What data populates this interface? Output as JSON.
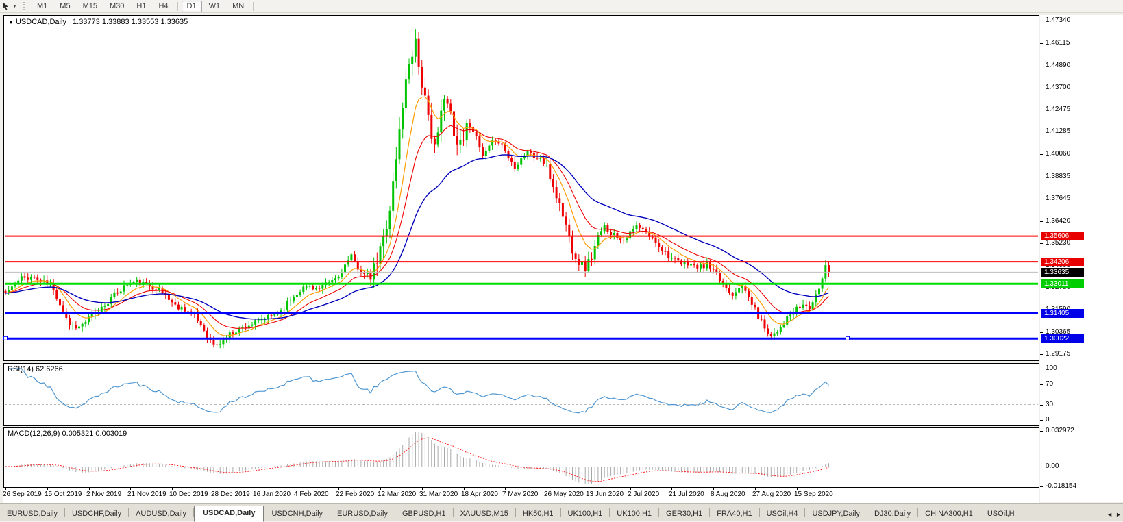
{
  "toolbar": {
    "tool_icon": "cursor-tool-icon",
    "dropdown_caret": "▼",
    "timeframes": [
      "M1",
      "M5",
      "M15",
      "M30",
      "H1",
      "H4",
      "D1",
      "W1",
      "MN"
    ],
    "active_timeframe": "D1"
  },
  "main_chart": {
    "collapse_caret": "▼",
    "title": "USDCAD,Daily",
    "ohlc": "1.33773 1.33883 1.33553 1.33635"
  },
  "rsi_panel": {
    "label": "RSI(14) 62.6266",
    "axis": [
      {
        "text": "100",
        "value": 100
      },
      {
        "text": "70",
        "value": 70
      },
      {
        "text": "30",
        "value": 30
      },
      {
        "text": "0",
        "value": 0
      }
    ]
  },
  "macd_panel": {
    "label": "MACD(12,26,9) 0.005321 0.003019",
    "axis": [
      {
        "text": "0.032972",
        "value": 0.032972
      },
      {
        "text": "0.00",
        "value": 0.0
      },
      {
        "text": "-0.018154",
        "value": -0.018154
      }
    ]
  },
  "price_axis": {
    "badges": [
      {
        "text": "1.35606",
        "price": 1.35606,
        "bg": "#e80000",
        "fg": "#ffffff"
      },
      {
        "text": "1.34206",
        "price": 1.34206,
        "bg": "#e80000",
        "fg": "#ffffff"
      },
      {
        "text": "1.33635",
        "price": 1.33635,
        "bg": "#000000",
        "fg": "#ffffff"
      },
      {
        "text": "1.33011",
        "price": 1.33011,
        "bg": "#00ce00",
        "fg": "#ffffff"
      },
      {
        "text": "1.31405",
        "price": 1.31405,
        "bg": "#0000e8",
        "fg": "#ffffff"
      },
      {
        "text": "1.30022",
        "price": 1.30022,
        "bg": "#0000e8",
        "fg": "#ffffff"
      }
    ]
  },
  "date_axis": {
    "labels": [
      "26 Sep 2019",
      "15 Oct 2019",
      "2 Nov 2019",
      "21 Nov 2019",
      "10 Dec 2019",
      "28 Dec 2019",
      "16 Jan 2020",
      "4 Feb 2020",
      "22 Feb 2020",
      "12 Mar 2020",
      "31 Mar 2020",
      "18 Apr 2020",
      "7 May 2020",
      "26 May 2020",
      "13 Jun 2020",
      "2 Jul 2020",
      "21 Jul 2020",
      "8 Aug 2020",
      "27 Aug 2020",
      "15 Sep 2020"
    ]
  },
  "tab_bar": {
    "tabs": [
      "EURUSD,Daily",
      "USDCHF,Daily",
      "AUDUSD,Daily",
      "USDCAD,Daily",
      "USDCNH,Daily",
      "EURUSD,Daily",
      "GBPUSD,H1",
      "XAUUSD,M15",
      "HK50,H1",
      "UK100,H1",
      "UK100,H1",
      "GER30,H1",
      "FRA40,H1",
      "USOil,H4",
      "USDJPY,Daily",
      "DJ30,Daily",
      "CHINA300,H1",
      "USOil,H"
    ],
    "active_index": 3,
    "scroll_left": "◄",
    "scroll_right": "►"
  },
  "chart_data": {
    "type": "candlestick",
    "symbol": "USDCAD",
    "timeframe": "Daily",
    "current": {
      "open": 1.33773,
      "high": 1.33883,
      "low": 1.33553,
      "close": 1.33635
    },
    "up_color": "#00c400",
    "down_color": "#ee0000",
    "y_axis": {
      "min": 1.29175,
      "max": 1.4734,
      "ticks": [
        1.4734,
        1.46115,
        1.4489,
        1.437,
        1.42475,
        1.41285,
        1.4006,
        1.38835,
        1.37645,
        1.3642,
        1.3523,
        1.34005,
        1.3278,
        1.3159,
        1.30365,
        1.29175
      ]
    },
    "x_labels": [
      "26 Sep 2019",
      "15 Oct 2019",
      "2 Nov 2019",
      "21 Nov 2019",
      "10 Dec 2019",
      "28 Dec 2019",
      "16 Jan 2020",
      "4 Feb 2020",
      "22 Feb 2020",
      "12 Mar 2020",
      "31 Mar 2020",
      "18 Apr 2020",
      "7 May 2020",
      "26 May 2020",
      "13 Jun 2020",
      "2 Jul 2020",
      "21 Jul 2020",
      "8 Aug 2020",
      "27 Aug 2020",
      "15 Sep 2020"
    ],
    "candle_count": 258,
    "seed": 11,
    "price_path_anchors": [
      [
        0,
        1.325
      ],
      [
        2,
        1.3285
      ],
      [
        5,
        1.333
      ],
      [
        8,
        1.3338
      ],
      [
        11,
        1.3315
      ],
      [
        14,
        1.3295
      ],
      [
        17,
        1.3195
      ],
      [
        20,
        1.308
      ],
      [
        23,
        1.3065
      ],
      [
        26,
        1.311
      ],
      [
        29,
        1.3155
      ],
      [
        32,
        1.3205
      ],
      [
        35,
        1.3255
      ],
      [
        38,
        1.33
      ],
      [
        41,
        1.331
      ],
      [
        44,
        1.3295
      ],
      [
        47,
        1.328
      ],
      [
        50,
        1.324
      ],
      [
        53,
        1.318
      ],
      [
        56,
        1.3165
      ],
      [
        59,
        1.3125
      ],
      [
        62,
        1.305
      ],
      [
        64,
        1.2985
      ],
      [
        66,
        1.2962
      ],
      [
        68,
        1.2995
      ],
      [
        71,
        1.304
      ],
      [
        75,
        1.307
      ],
      [
        79,
        1.3095
      ],
      [
        83,
        1.3125
      ],
      [
        86,
        1.3155
      ],
      [
        89,
        1.3215
      ],
      [
        92,
        1.327
      ],
      [
        95,
        1.329
      ],
      [
        98,
        1.327
      ],
      [
        101,
        1.3305
      ],
      [
        104,
        1.334
      ],
      [
        106,
        1.34
      ],
      [
        108,
        1.3445
      ],
      [
        110,
        1.339
      ],
      [
        112,
        1.335
      ],
      [
        114,
        1.3335
      ],
      [
        116,
        1.342
      ],
      [
        118,
        1.355
      ],
      [
        120,
        1.3715
      ],
      [
        122,
        1.398
      ],
      [
        124,
        1.428
      ],
      [
        126,
        1.451
      ],
      [
        128,
        1.463
      ],
      [
        129,
        1.449
      ],
      [
        131,
        1.43
      ],
      [
        133,
        1.407
      ],
      [
        135,
        1.413
      ],
      [
        137,
        1.43
      ],
      [
        139,
        1.423
      ],
      [
        141,
        1.406
      ],
      [
        143,
        1.411
      ],
      [
        145,
        1.419
      ],
      [
        147,
        1.409
      ],
      [
        149,
        1.399
      ],
      [
        151,
        1.404
      ],
      [
        153,
        1.409
      ],
      [
        155,
        1.406
      ],
      [
        157,
        1.399
      ],
      [
        159,
        1.394
      ],
      [
        161,
        1.3985
      ],
      [
        163,
        1.4025
      ],
      [
        165,
        1.399
      ],
      [
        167,
        1.3985
      ],
      [
        169,
        1.393
      ],
      [
        171,
        1.383
      ],
      [
        173,
        1.373
      ],
      [
        175,
        1.362
      ],
      [
        177,
        1.349
      ],
      [
        179,
        1.342
      ],
      [
        181,
        1.339
      ],
      [
        183,
        1.345
      ],
      [
        185,
        1.355
      ],
      [
        187,
        1.361
      ],
      [
        189,
        1.358
      ],
      [
        191,
        1.356
      ],
      [
        193,
        1.3545
      ],
      [
        195,
        1.3575
      ],
      [
        197,
        1.3615
      ],
      [
        199,
        1.359
      ],
      [
        201,
        1.356
      ],
      [
        203,
        1.353
      ],
      [
        205,
        1.349
      ],
      [
        207,
        1.3455
      ],
      [
        209,
        1.3425
      ],
      [
        211,
        1.3405
      ],
      [
        213,
        1.3415
      ],
      [
        215,
        1.3395
      ],
      [
        217,
        1.339
      ],
      [
        219,
        1.3405
      ],
      [
        221,
        1.3365
      ],
      [
        223,
        1.332
      ],
      [
        225,
        1.328
      ],
      [
        227,
        1.3245
      ],
      [
        229,
        1.329
      ],
      [
        231,
        1.326
      ],
      [
        233,
        1.3195
      ],
      [
        235,
        1.3125
      ],
      [
        237,
        1.3065
      ],
      [
        239,
        1.302
      ],
      [
        241,
        1.305
      ],
      [
        243,
        1.309
      ],
      [
        245,
        1.313
      ],
      [
        247,
        1.316
      ],
      [
        249,
        1.3185
      ],
      [
        251,
        1.317
      ],
      [
        253,
        1.323
      ],
      [
        255,
        1.333
      ],
      [
        256,
        1.3405
      ],
      [
        257,
        1.3363
      ]
    ],
    "volatility_zones": [
      [
        114,
        145,
        2.5
      ],
      [
        169,
        185,
        1.6
      ]
    ],
    "horizontal_lines": [
      {
        "price": 1.33635,
        "color": "#bdbdbd",
        "width": 1,
        "name": "current-price-line"
      },
      {
        "price": 1.35606,
        "color": "#ff0000",
        "width": 2,
        "name": "resistance-line-1"
      },
      {
        "price": 1.34206,
        "color": "#ff0000",
        "width": 2,
        "name": "resistance-line-2"
      },
      {
        "price": 1.33011,
        "color": "#00dd00",
        "width": 3,
        "name": "support-line-green"
      },
      {
        "price": 1.31405,
        "color": "#0000ff",
        "width": 3,
        "name": "support-line-blue-1"
      },
      {
        "price": 1.30022,
        "color": "#0000ff",
        "width": 3,
        "name": "support-line-blue-2",
        "selected": true
      }
    ],
    "selected_line_price": 1.30022,
    "selected_line_handles": [
      8,
      1237
    ],
    "moving_averages": [
      {
        "period": 9,
        "type": "ema",
        "color": "#ff9c00",
        "width": 1.2,
        "name": "ma-fast-orange"
      },
      {
        "period": 18,
        "type": "ema",
        "color": "#ee0000",
        "width": 1.1,
        "name": "ma-mid-red"
      },
      {
        "period": 40,
        "type": "ema",
        "color": "#0000bb",
        "width": 1.4,
        "name": "ma-slow-blue"
      }
    ],
    "indicators": {
      "rsi": {
        "period": 14,
        "value": 62.6266,
        "levels": [
          70,
          30
        ],
        "range": [
          0,
          100
        ],
        "color": "#4e96d2"
      },
      "macd": {
        "fast": 12,
        "slow": 26,
        "signal": 9,
        "values": [
          0.005321,
          0.003019
        ],
        "axis_max": 0.032972,
        "axis_min": -0.018154,
        "histogram_color": "#a8a8a8",
        "signal_color": "#ff2020"
      }
    }
  }
}
